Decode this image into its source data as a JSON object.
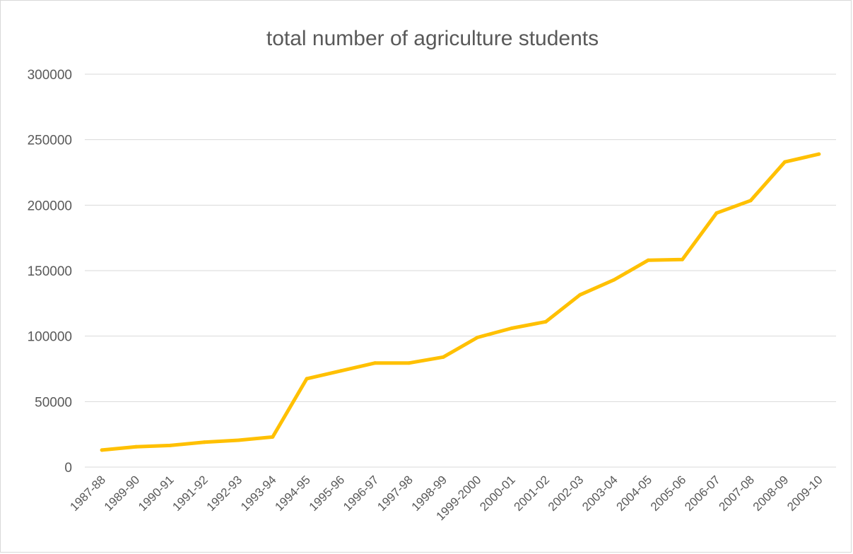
{
  "chart_data": {
    "type": "line",
    "title": "total number of agriculture students",
    "xlabel": "",
    "ylabel": "",
    "categories": [
      "1987-88",
      "1989-90",
      "1990-91",
      "1991-92",
      "1992-93",
      "1993-94",
      "1994-95",
      "1995-96",
      "1996-97",
      "1997-98",
      "1998-99",
      "1999-2000",
      "2000-01",
      "2001-02",
      "2002-03",
      "2003-04",
      "2004-05",
      "2005-06",
      "2006-07",
      "2007-08",
      "2008-09",
      "2009-10"
    ],
    "series": [
      {
        "values": [
          13000,
          15500,
          16500,
          19000,
          20500,
          23000,
          67500,
          73500,
          79500,
          79500,
          84000,
          99000,
          106000,
          111000,
          131500,
          143000,
          158000,
          158500,
          194000,
          203500,
          233000,
          239000
        ]
      }
    ],
    "y_ticks": [
      "0",
      "50000",
      "100000",
      "150000",
      "200000",
      "250000",
      "300000"
    ],
    "ylim": [
      0,
      300000
    ],
    "grid": true,
    "legend": "none",
    "line_color": "#FFC000"
  }
}
